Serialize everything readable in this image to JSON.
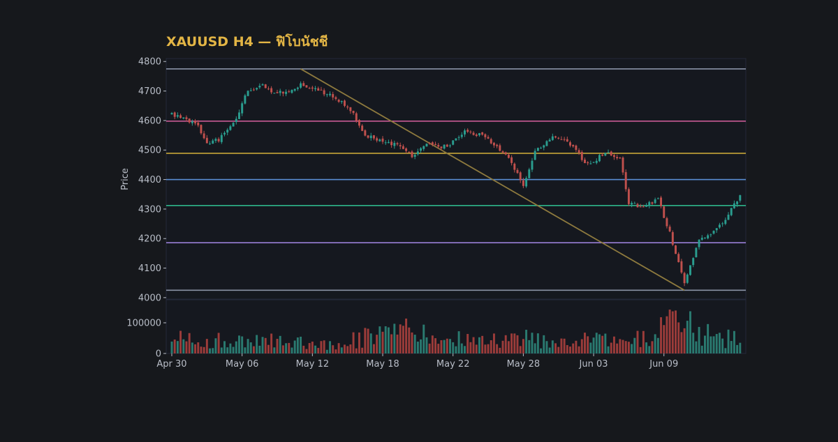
{
  "theme": {
    "background": "#16181c",
    "panel_bg": "#15181f",
    "panel_border": "#242938",
    "title_color": "#e3b545",
    "tick_color": "#b9bec8",
    "up_color": "#2a9d8f",
    "down_color": "#c0504d",
    "vol_up_color": "#2a7a70",
    "vol_down_color": "#9c3c3a",
    "trendline_color": "#8e7a3e"
  },
  "chart_data": {
    "type": "candlestick",
    "title": "XAUUSD H4 — ฟิโบนัชชี",
    "ylabel": "Price",
    "ylim": [
      3995,
      4810
    ],
    "yticks": [
      4000,
      4100,
      4200,
      4300,
      4400,
      4500,
      4600,
      4700,
      4800
    ],
    "volume_ylim": [
      0,
      175000
    ],
    "volume_yticks": [
      0,
      100000
    ],
    "volume_ytick_labels": [
      "0",
      "100000"
    ],
    "grid": false,
    "x_tick_labels": [
      {
        "label": "Apr 30",
        "index": 0
      },
      {
        "label": "May 06",
        "index": 24
      },
      {
        "label": "May 12",
        "index": 48
      },
      {
        "label": "May 18",
        "index": 72
      },
      {
        "label": "May 22",
        "index": 96
      },
      {
        "label": "May 28",
        "index": 120
      },
      {
        "label": "Jun 03",
        "index": 144
      },
      {
        "label": "Jun 09",
        "index": 168
      }
    ],
    "fib_levels": [
      {
        "price": 4775,
        "color": "#8a93a6"
      },
      {
        "price": 4598,
        "color": "#d65f9e"
      },
      {
        "price": 4489,
        "color": "#d6b23a"
      },
      {
        "price": 4400,
        "color": "#5b8fd6"
      },
      {
        "price": 4312,
        "color": "#2fb58a"
      },
      {
        "price": 4186,
        "color": "#9a7fd6"
      },
      {
        "price": 4025,
        "color": "#8a93a6"
      }
    ],
    "trendline": {
      "start": {
        "index": 44,
        "price": 4775
      },
      "end": {
        "index": 175,
        "price": 4025
      }
    },
    "anchors": [
      [
        0,
        4620
      ],
      [
        6,
        4600
      ],
      [
        9,
        4580
      ],
      [
        12,
        4520
      ],
      [
        16,
        4535
      ],
      [
        22,
        4600
      ],
      [
        25,
        4690
      ],
      [
        31,
        4720
      ],
      [
        34,
        4700
      ],
      [
        40,
        4690
      ],
      [
        44,
        4720
      ],
      [
        50,
        4700
      ],
      [
        56,
        4680
      ],
      [
        62,
        4620
      ],
      [
        66,
        4550
      ],
      [
        76,
        4520
      ],
      [
        82,
        4480
      ],
      [
        86,
        4520
      ],
      [
        94,
        4510
      ],
      [
        100,
        4560
      ],
      [
        106,
        4550
      ],
      [
        112,
        4500
      ],
      [
        116,
        4460
      ],
      [
        120,
        4380
      ],
      [
        124,
        4500
      ],
      [
        130,
        4540
      ],
      [
        135,
        4530
      ],
      [
        142,
        4450
      ],
      [
        148,
        4490
      ],
      [
        153,
        4470
      ],
      [
        156,
        4320
      ],
      [
        160,
        4310
      ],
      [
        166,
        4330
      ],
      [
        170,
        4220
      ],
      [
        175,
        4050
      ],
      [
        178,
        4130
      ],
      [
        180,
        4200
      ],
      [
        185,
        4220
      ],
      [
        190,
        4280
      ],
      [
        194,
        4350
      ]
    ],
    "volume_anchors": [
      [
        0,
        60000
      ],
      [
        10,
        35000
      ],
      [
        20,
        45000
      ],
      [
        30,
        40000
      ],
      [
        40,
        45000
      ],
      [
        50,
        30000
      ],
      [
        60,
        40000
      ],
      [
        70,
        60000
      ],
      [
        80,
        70000
      ],
      [
        90,
        50000
      ],
      [
        100,
        45000
      ],
      [
        110,
        40000
      ],
      [
        120,
        50000
      ],
      [
        130,
        40000
      ],
      [
        140,
        45000
      ],
      [
        150,
        40000
      ],
      [
        160,
        50000
      ],
      [
        170,
        90000
      ],
      [
        175,
        120000
      ],
      [
        180,
        70000
      ],
      [
        186,
        50000
      ],
      [
        194,
        45000
      ]
    ],
    "n_bars": 195,
    "seed": 11
  }
}
